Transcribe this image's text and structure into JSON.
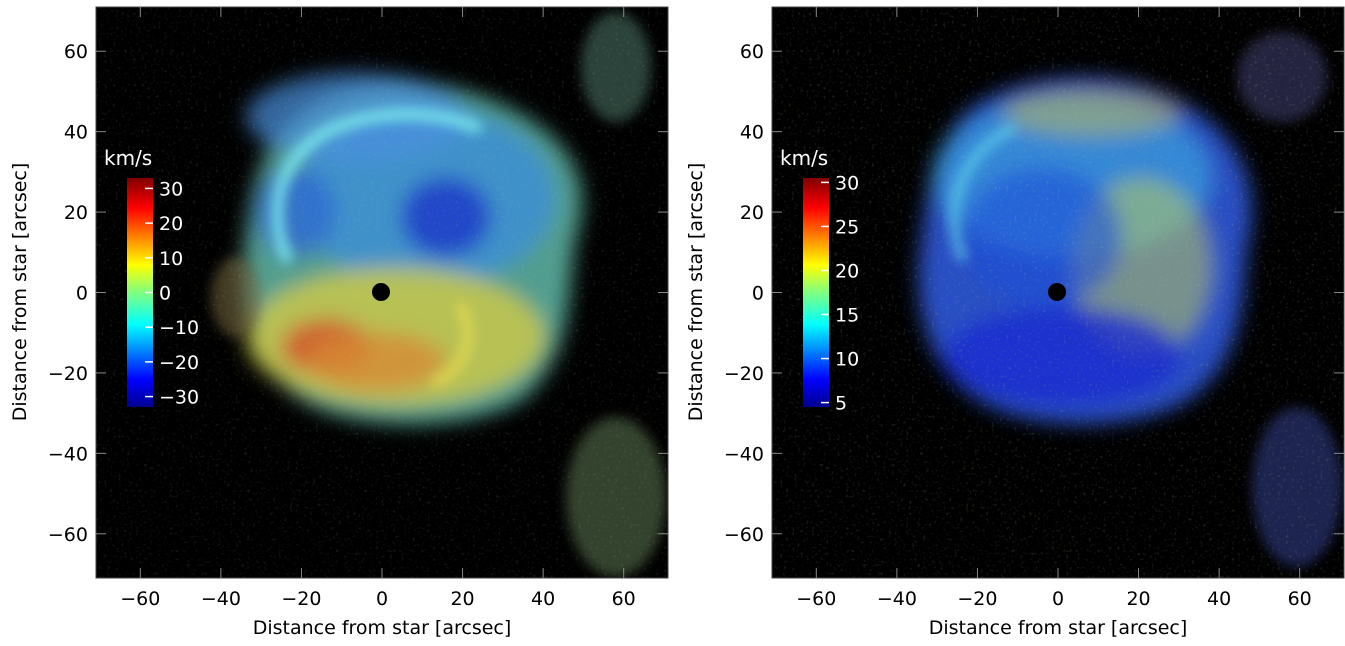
{
  "chart_data": [
    {
      "type": "heatmap",
      "title": "",
      "xlabel": "Distance from star [arcsec]",
      "ylabel": "Distance from star [arcsec]",
      "xlim": [
        -71,
        71
      ],
      "ylim": [
        -71,
        71
      ],
      "xticks": [
        -60,
        -40,
        -20,
        0,
        20,
        40,
        60
      ],
      "yticks": [
        -60,
        -40,
        -20,
        0,
        20,
        40,
        60
      ],
      "xtick_labels": [
        "−60",
        "−40",
        "−20",
        "0",
        "20",
        "40",
        "60"
      ],
      "ytick_labels": [
        "−60",
        "−40",
        "−20",
        "0",
        "20",
        "40",
        "60"
      ],
      "colorbar": {
        "label": "km/s",
        "range": [
          -33,
          33
        ],
        "ticks": [
          30,
          20,
          10,
          0,
          -10,
          -20,
          -30
        ],
        "tick_labels": [
          "30",
          "20",
          "10",
          "0",
          "−10",
          "−20",
          "−30"
        ],
        "colormap": "jet"
      },
      "masked_star_center": [
        0,
        0
      ]
    },
    {
      "type": "heatmap",
      "title": "",
      "xlabel": "Distance from star [arcsec]",
      "ylabel": "Distance from star [arcsec]",
      "xlim": [
        -71,
        71
      ],
      "ylim": [
        -71,
        71
      ],
      "xticks": [
        -60,
        -40,
        -20,
        0,
        20,
        40,
        60
      ],
      "yticks": [
        -60,
        -40,
        -20,
        0,
        20,
        40,
        60
      ],
      "xtick_labels": [
        "−60",
        "−40",
        "−20",
        "0",
        "20",
        "40",
        "60"
      ],
      "ytick_labels": [
        "−60",
        "−40",
        "−20",
        "0",
        "20",
        "40",
        "60"
      ],
      "colorbar": {
        "label": "km/s",
        "range": [
          4.5,
          30.5
        ],
        "ticks": [
          30,
          25,
          20,
          15,
          10,
          5
        ],
        "tick_labels": [
          "30",
          "25",
          "20",
          "15",
          "10",
          "5"
        ],
        "colormap": "jet"
      },
      "masked_star_center": [
        0,
        0
      ]
    }
  ]
}
